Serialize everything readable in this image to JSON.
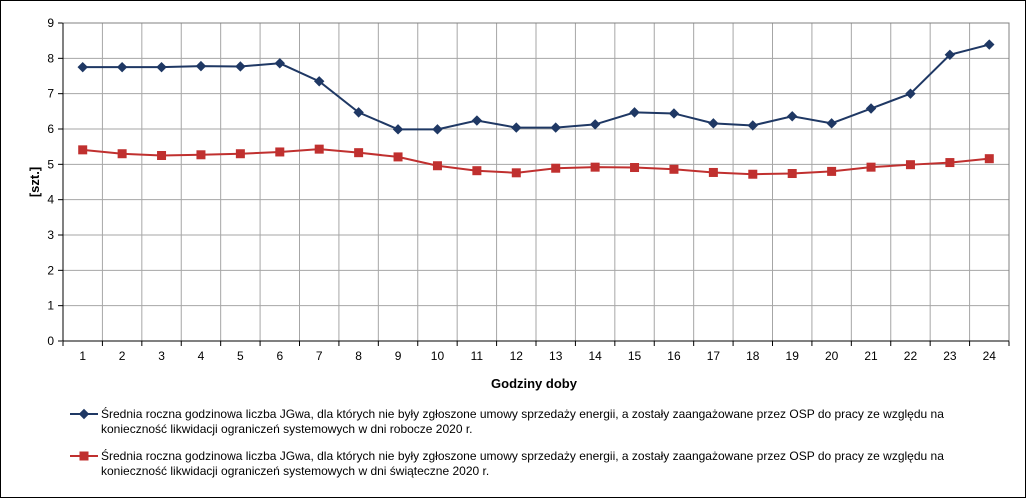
{
  "chart_data": {
    "type": "line",
    "title": "",
    "xlabel": "Godziny doby",
    "ylabel": "[szt.]",
    "ylim": [
      0,
      9
    ],
    "yticks": [
      "0",
      "1",
      "2",
      "3",
      "4",
      "5",
      "6",
      "7",
      "8",
      "9"
    ],
    "categories": [
      "1",
      "2",
      "3",
      "4",
      "5",
      "6",
      "7",
      "8",
      "9",
      "10",
      "11",
      "12",
      "13",
      "14",
      "15",
      "16",
      "17",
      "18",
      "19",
      "20",
      "21",
      "22",
      "23",
      "24"
    ],
    "grid": true,
    "legend_position": "bottom",
    "series": [
      {
        "name": "Średnia roczna godzinowa liczba JGwa, dla których nie były zgłoszone umowy sprzedaży energii, a zostały zaangażowane przez OSP do pracy ze względu na konieczność likwidacji ograniczeń systemowych w dni robocze 2020 r.",
        "legend_lines": [
          "Średnia roczna godzinowa liczba JGwa, dla których nie były zgłoszone umowy sprzedaży energii, a zostały zaangażowane przez OSP do pracy ze względu na",
          "konieczność likwidacji ograniczeń systemowych w dni robocze 2020 r."
        ],
        "color": "#1f3864",
        "marker": "diamond",
        "values": [
          7.75,
          7.75,
          7.75,
          7.78,
          7.77,
          7.86,
          7.35,
          6.47,
          5.99,
          5.99,
          6.24,
          6.04,
          6.04,
          6.13,
          6.47,
          6.44,
          6.16,
          6.1,
          6.36,
          6.16,
          6.58,
          7.0,
          8.1,
          8.39
        ]
      },
      {
        "name": "Średnia roczna godzinowa liczba JGwa, dla których nie były zgłoszone umowy sprzedaży energii, a zostały zaangażowane przez OSP do pracy ze względu na konieczność likwidacji ograniczeń systemowych w dni świąteczne 2020 r.",
        "legend_lines": [
          "Średnia roczna godzinowa liczba JGwa, dla których nie były zgłoszone umowy sprzedaży energii, a zostały zaangażowane przez OSP do pracy ze względu na",
          "konieczność likwidacji ograniczeń systemowych w dni świąteczne 2020 r."
        ],
        "color": "#c0302f",
        "marker": "square",
        "values": [
          5.41,
          5.3,
          5.25,
          5.27,
          5.3,
          5.35,
          5.43,
          5.33,
          5.21,
          4.96,
          4.82,
          4.76,
          4.89,
          4.92,
          4.91,
          4.86,
          4.77,
          4.72,
          4.74,
          4.8,
          4.92,
          4.99,
          5.05,
          5.16
        ]
      }
    ]
  }
}
